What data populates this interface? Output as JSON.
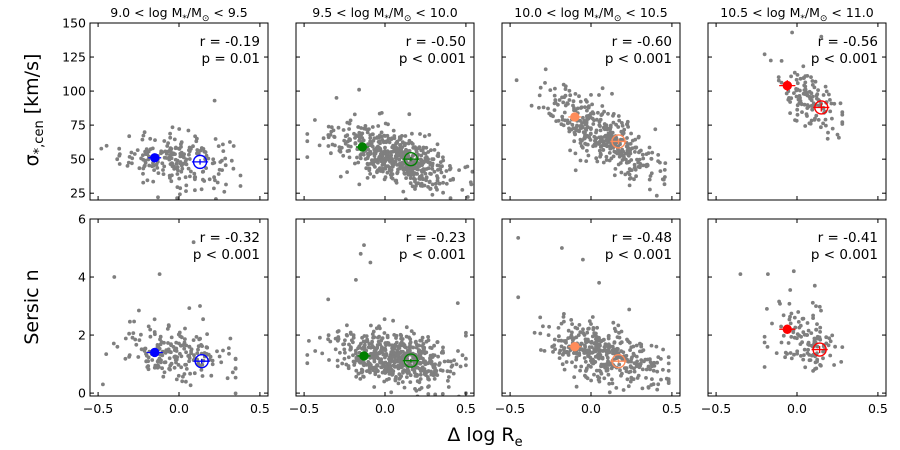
{
  "figure": {
    "xlabel": "Δ log R",
    "xlabel_sub": "e",
    "row_labels": [
      {
        "main": "σ",
        "sub": "*,cen",
        "unit": " [km/s]"
      },
      {
        "main": "Sersic n",
        "sub": "",
        "unit": ""
      }
    ],
    "column_titles": [
      {
        "lo": "9.0",
        "hi": "9.5",
        "mid_prefix": " < log M",
        "mid_sub": "*",
        "mid_slash": "/M",
        "mid_sub2": "⊙",
        "lt": " < "
      },
      {
        "lo": "9.5",
        "hi": "10.0",
        "mid_prefix": " < log M",
        "mid_sub": "*",
        "mid_slash": "/M",
        "mid_sub2": "⊙",
        "lt": " < "
      },
      {
        "lo": "10.0",
        "hi": "10.5",
        "mid_prefix": " < log M",
        "mid_sub": "*",
        "mid_slash": "/M",
        "mid_sub2": "⊙",
        "lt": " < "
      },
      {
        "lo": "10.5",
        "hi": "11.0",
        "mid_prefix": " < log M",
        "mid_sub": "*",
        "mid_slash": "/M",
        "mid_sub2": "⊙",
        "lt": " < "
      }
    ],
    "colors": {
      "scatter": "#7f7f7f",
      "mass_bins": [
        "#0000ff",
        "#008000",
        "#ff8c5a",
        "#ff0000"
      ]
    }
  },
  "chart_data": [
    {
      "type": "scatter",
      "row": 0,
      "col": 0,
      "title": "9.0 < log M*/M⊙ < 9.5",
      "xlim": [
        -0.55,
        0.55
      ],
      "ylim": [
        20,
        150
      ],
      "yticks": [
        25,
        50,
        75,
        100,
        125,
        150
      ],
      "xticks": [
        -0.5,
        0.0,
        0.5
      ],
      "annotation": [
        "r = -0.19",
        "p = 0.01"
      ],
      "cloud": {
        "n": 200,
        "xc": -0.02,
        "xs": 0.17,
        "xmin": -0.48,
        "xmax": 0.38,
        "slope": -9,
        "yc": 50,
        "ys": 10
      },
      "outliers": [
        [
          0.22,
          93
        ],
        [
          0.28,
          26
        ],
        [
          -0.13,
          22
        ]
      ],
      "markers": [
        {
          "x": -0.15,
          "y": 51,
          "xerr": 0.04,
          "yerr": 2,
          "filled": true
        },
        {
          "x": 0.13,
          "y": 48,
          "xerr": 0.05,
          "yerr": 2,
          "filled": false
        }
      ]
    },
    {
      "type": "scatter",
      "row": 0,
      "col": 1,
      "title": "9.5 < log M*/M⊙ < 10.0",
      "xlim": [
        -0.55,
        0.55
      ],
      "ylim": [
        20,
        150
      ],
      "yticks": [
        25,
        50,
        75,
        100,
        125,
        150
      ],
      "xticks": [
        -0.5,
        0.0,
        0.5
      ],
      "annotation": [
        "r = -0.50",
        "p < 0.001"
      ],
      "cloud": {
        "n": 560,
        "xc": 0.05,
        "xs": 0.18,
        "xmin": -0.48,
        "xmax": 0.54,
        "slope": -38,
        "yc": 52,
        "ys": 9
      },
      "outliers": [
        [
          -0.16,
          101
        ],
        [
          -0.02,
          84
        ],
        [
          0.15,
          83
        ],
        [
          -0.3,
          95
        ],
        [
          0.53,
          33
        ]
      ],
      "markers": [
        {
          "x": -0.14,
          "y": 59,
          "xerr": 0.04,
          "yerr": 1.5,
          "filled": true
        },
        {
          "x": 0.16,
          "y": 50,
          "xerr": 0.05,
          "yerr": 1.5,
          "filled": false
        }
      ]
    },
    {
      "type": "scatter",
      "row": 0,
      "col": 2,
      "title": "10.0 < log M*/M⊙ < 10.5",
      "xlim": [
        -0.55,
        0.55
      ],
      "ylim": [
        20,
        150
      ],
      "yticks": [
        25,
        50,
        75,
        100,
        125,
        150
      ],
      "xticks": [
        -0.5,
        0.0,
        0.5
      ],
      "annotation": [
        "r = -0.60",
        "p < 0.001"
      ],
      "cloud": {
        "n": 390,
        "xc": 0.08,
        "xs": 0.17,
        "xmin": -0.46,
        "xmax": 0.48,
        "slope": -70,
        "yc": 66,
        "ys": 11
      },
      "outliers": [
        [
          -0.46,
          108
        ],
        [
          -0.28,
          116
        ],
        [
          0.13,
          98
        ],
        [
          0.45,
          35
        ]
      ],
      "markers": [
        {
          "x": -0.1,
          "y": 81,
          "xerr": 0.04,
          "yerr": 2,
          "filled": true
        },
        {
          "x": 0.17,
          "y": 63,
          "xerr": 0.05,
          "yerr": 2,
          "filled": false
        }
      ]
    },
    {
      "type": "scatter",
      "row": 0,
      "col": 3,
      "title": "10.5 < log M*/M⊙ < 11.0",
      "xlim": [
        -0.55,
        0.55
      ],
      "ylim": [
        20,
        150
      ],
      "yticks": [
        25,
        50,
        75,
        100,
        125,
        150
      ],
      "xticks": [
        -0.5,
        0.0,
        0.5
      ],
      "annotation": [
        "r = -0.56",
        "p < 0.001"
      ],
      "cloud": {
        "n": 120,
        "xc": 0.07,
        "xs": 0.1,
        "xmin": -0.2,
        "xmax": 0.28,
        "slope": -80,
        "yc": 93,
        "ys": 11
      },
      "outliers": [
        [
          -0.2,
          127
        ],
        [
          -0.03,
          143
        ],
        [
          0.15,
          140
        ],
        [
          0.25,
          68
        ]
      ],
      "markers": [
        {
          "x": -0.06,
          "y": 104,
          "xerr": 0.05,
          "yerr": 4,
          "filled": true
        },
        {
          "x": 0.15,
          "y": 88,
          "xerr": 0.05,
          "yerr": 3,
          "filled": false
        }
      ]
    },
    {
      "type": "scatter",
      "row": 1,
      "col": 0,
      "title": "",
      "xlim": [
        -0.55,
        0.55
      ],
      "ylim": [
        -0.1,
        6.0
      ],
      "yticks": [
        0,
        2,
        4,
        6
      ],
      "xticks": [
        -0.5,
        0.0,
        0.5
      ],
      "annotation": [
        "r = -0.32",
        "p < 0.001"
      ],
      "cloud": {
        "n": 200,
        "xc": -0.02,
        "xs": 0.17,
        "xmin": -0.45,
        "xmax": 0.35,
        "slope": -0.9,
        "yc": 1.4,
        "ys": 0.5
      },
      "outliers": [
        [
          -0.47,
          0.3
        ],
        [
          0.09,
          5.2
        ],
        [
          -0.4,
          4.0
        ],
        [
          -0.12,
          4.1
        ],
        [
          0.13,
          3.0
        ]
      ],
      "markers": [
        {
          "x": -0.15,
          "y": 1.4,
          "xerr": 0.05,
          "yerr": 0.1,
          "filled": true
        },
        {
          "x": 0.14,
          "y": 1.1,
          "xerr": 0.05,
          "yerr": 0.08,
          "filled": false
        }
      ]
    },
    {
      "type": "scatter",
      "row": 1,
      "col": 1,
      "title": "",
      "xlim": [
        -0.55,
        0.55
      ],
      "ylim": [
        -0.1,
        6.0
      ],
      "yticks": [
        0,
        2,
        4,
        6
      ],
      "xticks": [
        -0.5,
        0.0,
        0.5
      ],
      "annotation": [
        "r = -0.23",
        "p < 0.001"
      ],
      "cloud": {
        "n": 560,
        "xc": 0.05,
        "xs": 0.18,
        "xmin": -0.48,
        "xmax": 0.5,
        "slope": -0.9,
        "yc": 1.25,
        "ys": 0.45
      },
      "outliers": [
        [
          -0.13,
          5.1
        ],
        [
          -0.15,
          4.8
        ],
        [
          -0.18,
          3.9
        ],
        [
          0.45,
          3.1
        ],
        [
          -0.47,
          1.8
        ],
        [
          -0.09,
          4.5
        ]
      ],
      "markers": [
        {
          "x": -0.13,
          "y": 1.28,
          "xerr": 0.04,
          "yerr": 0.08,
          "filled": true
        },
        {
          "x": 0.16,
          "y": 1.12,
          "xerr": 0.05,
          "yerr": 0.06,
          "filled": false
        }
      ]
    },
    {
      "type": "scatter",
      "row": 1,
      "col": 2,
      "title": "",
      "xlim": [
        -0.55,
        0.55
      ],
      "ylim": [
        -0.1,
        6.0
      ],
      "yticks": [
        0,
        2,
        4,
        6
      ],
      "xticks": [
        -0.5,
        0.0,
        0.5
      ],
      "annotation": [
        "r = -0.48",
        "p < 0.001"
      ],
      "cloud": {
        "n": 390,
        "xc": 0.08,
        "xs": 0.17,
        "xmin": -0.45,
        "xmax": 0.48,
        "slope": -1.6,
        "yc": 1.35,
        "ys": 0.45
      },
      "outliers": [
        [
          -0.45,
          5.35
        ],
        [
          -0.18,
          5.0
        ],
        [
          -0.05,
          4.6
        ],
        [
          -0.45,
          3.3
        ],
        [
          0.05,
          3.8
        ]
      ],
      "markers": [
        {
          "x": -0.1,
          "y": 1.6,
          "xerr": 0.04,
          "yerr": 0.1,
          "filled": true
        },
        {
          "x": 0.17,
          "y": 1.1,
          "xerr": 0.05,
          "yerr": 0.07,
          "filled": false
        }
      ]
    },
    {
      "type": "scatter",
      "row": 1,
      "col": 3,
      "title": "",
      "xlim": [
        -0.55,
        0.55
      ],
      "ylim": [
        -0.1,
        6.0
      ],
      "yticks": [
        0,
        2,
        4,
        6
      ],
      "xticks": [
        -0.5,
        0.0,
        0.5
      ],
      "annotation": [
        "r = -0.41",
        "p < 0.001"
      ],
      "cloud": {
        "n": 120,
        "xc": 0.07,
        "xs": 0.1,
        "xmin": -0.2,
        "xmax": 0.28,
        "slope": -2.4,
        "yc": 1.8,
        "ys": 0.6
      },
      "outliers": [
        [
          -0.35,
          4.1
        ],
        [
          -0.18,
          4.1
        ],
        [
          -0.02,
          4.2
        ],
        [
          0.11,
          3.7
        ],
        [
          -0.2,
          0.9
        ]
      ],
      "markers": [
        {
          "x": -0.06,
          "y": 2.2,
          "xerr": 0.05,
          "yerr": 0.15,
          "filled": true
        },
        {
          "x": 0.14,
          "y": 1.5,
          "xerr": 0.05,
          "yerr": 0.12,
          "filled": false
        }
      ]
    }
  ]
}
